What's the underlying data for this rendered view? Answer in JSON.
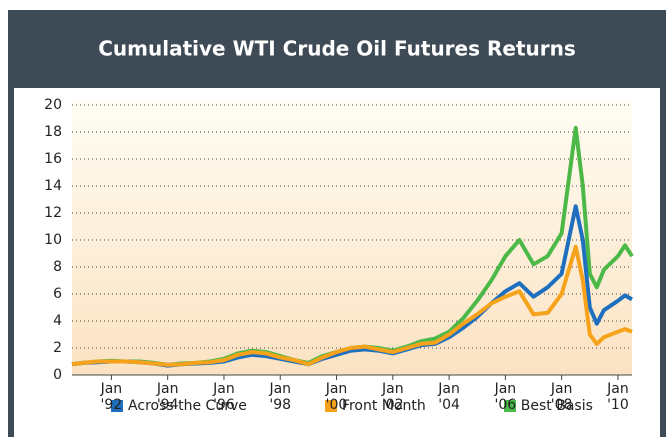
{
  "chart_data": {
    "type": "line",
    "title": "Cumulative WTI Crude Oil Futures Returns",
    "x": [
      1990.6,
      1991,
      1991.5,
      1992,
      1992.5,
      1993,
      1993.5,
      1994,
      1994.5,
      1995,
      1995.5,
      1996,
      1996.5,
      1997,
      1997.5,
      1998,
      1998.5,
      1999,
      1999.5,
      2000,
      2000.5,
      2001,
      2001.5,
      2002,
      2002.5,
      2003,
      2003.5,
      2004,
      2004.5,
      2005,
      2005.5,
      2006,
      2006.5,
      2007,
      2007.5,
      2008,
      2008.5,
      2008.75,
      2009,
      2009.25,
      2009.5,
      2010,
      2010.25,
      2010.5
    ],
    "series": [
      {
        "name": "Best Basis",
        "color": "#4cb848",
        "values": [
          0.8,
          0.9,
          1.0,
          1.05,
          1.0,
          1.0,
          0.9,
          0.75,
          0.85,
          0.9,
          1.0,
          1.2,
          1.6,
          1.8,
          1.7,
          1.4,
          1.1,
          0.9,
          1.4,
          1.7,
          2.0,
          2.1,
          2.0,
          1.8,
          2.1,
          2.5,
          2.7,
          3.2,
          4.2,
          5.5,
          7.0,
          8.8,
          10.0,
          8.2,
          8.8,
          10.5,
          18.3,
          14,
          7.5,
          6.5,
          7.8,
          8.8,
          9.6,
          8.8
        ]
      },
      {
        "name": "Across the Curve",
        "color": "#1f6fbf",
        "values": [
          0.8,
          0.9,
          0.95,
          1.0,
          1.0,
          0.95,
          0.85,
          0.7,
          0.8,
          0.85,
          0.9,
          1.0,
          1.3,
          1.5,
          1.4,
          1.2,
          1.0,
          0.8,
          1.2,
          1.5,
          1.8,
          1.9,
          1.8,
          1.6,
          1.9,
          2.2,
          2.3,
          2.8,
          3.5,
          4.3,
          5.3,
          6.2,
          6.8,
          5.8,
          6.5,
          7.5,
          12.5,
          10,
          5.0,
          3.8,
          4.8,
          5.5,
          5.9,
          5.6
        ]
      },
      {
        "name": "Front Month",
        "color": "#f7a21b",
        "values": [
          0.8,
          0.9,
          1.0,
          1.0,
          1.0,
          0.95,
          0.85,
          0.75,
          0.8,
          0.9,
          0.95,
          1.1,
          1.5,
          1.7,
          1.6,
          1.3,
          1.1,
          0.8,
          1.3,
          1.7,
          2.0,
          2.1,
          1.9,
          1.7,
          2.0,
          2.3,
          2.4,
          3.0,
          3.8,
          4.5,
          5.3,
          5.8,
          6.2,
          4.5,
          4.6,
          6.0,
          9.5,
          7.0,
          3.0,
          2.3,
          2.8,
          3.2,
          3.4,
          3.2
        ]
      }
    ],
    "legend_order": [
      "Across the Curve",
      "Front Month",
      "Best Basis"
    ],
    "xlim": [
      1990.6,
      2010.5
    ],
    "xticks": [
      {
        "value": 1992,
        "label": "Jan '92"
      },
      {
        "value": 1994,
        "label": "Jan '94"
      },
      {
        "value": 1996,
        "label": "Jan '96"
      },
      {
        "value": 1998,
        "label": "Jan '98"
      },
      {
        "value": 2000,
        "label": "Jan '00"
      },
      {
        "value": 2002,
        "label": "Jan '02"
      },
      {
        "value": 2004,
        "label": "Jan '04"
      },
      {
        "value": 2006,
        "label": "Jan '06"
      },
      {
        "value": 2008,
        "label": "Jan '08"
      },
      {
        "value": 2010,
        "label": "Jan '10"
      }
    ],
    "ylim": [
      0,
      20
    ],
    "yticks": [
      0,
      2,
      4,
      6,
      8,
      10,
      12,
      14,
      16,
      18,
      20
    ],
    "grid": true,
    "legend": "bottom"
  }
}
